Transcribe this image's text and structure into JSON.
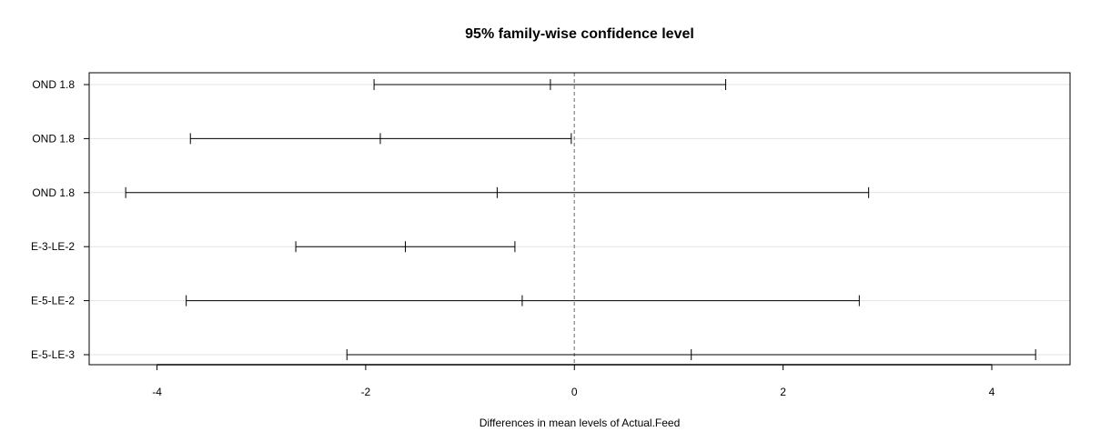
{
  "chart_data": {
    "type": "errorbar",
    "title": "95% family-wise confidence level",
    "xlabel": "Differences in mean levels of Actual.Feed",
    "ylabel": "",
    "xlim": [
      -4.65,
      4.75
    ],
    "xticks": [
      -4,
      -2,
      0,
      2,
      4
    ],
    "reference_line": 0,
    "grid": "horizontal",
    "categories": [
      {
        "label": "OND 1.8",
        "lwr": -1.92,
        "diff": -0.23,
        "upr": 1.45
      },
      {
        "label": "OND 1.8",
        "lwr": -3.68,
        "diff": -1.86,
        "upr": -0.03
      },
      {
        "label": "OND 1.8",
        "lwr": -4.3,
        "diff": -0.74,
        "upr": 2.82
      },
      {
        "label": "E-3-LE-2",
        "lwr": -2.67,
        "diff": -1.62,
        "upr": -0.57
      },
      {
        "label": "E-5-LE-2",
        "lwr": -3.72,
        "diff": -0.5,
        "upr": 2.73
      },
      {
        "label": "E-5-LE-3",
        "lwr": -2.18,
        "diff": 1.12,
        "upr": 4.42
      }
    ]
  }
}
